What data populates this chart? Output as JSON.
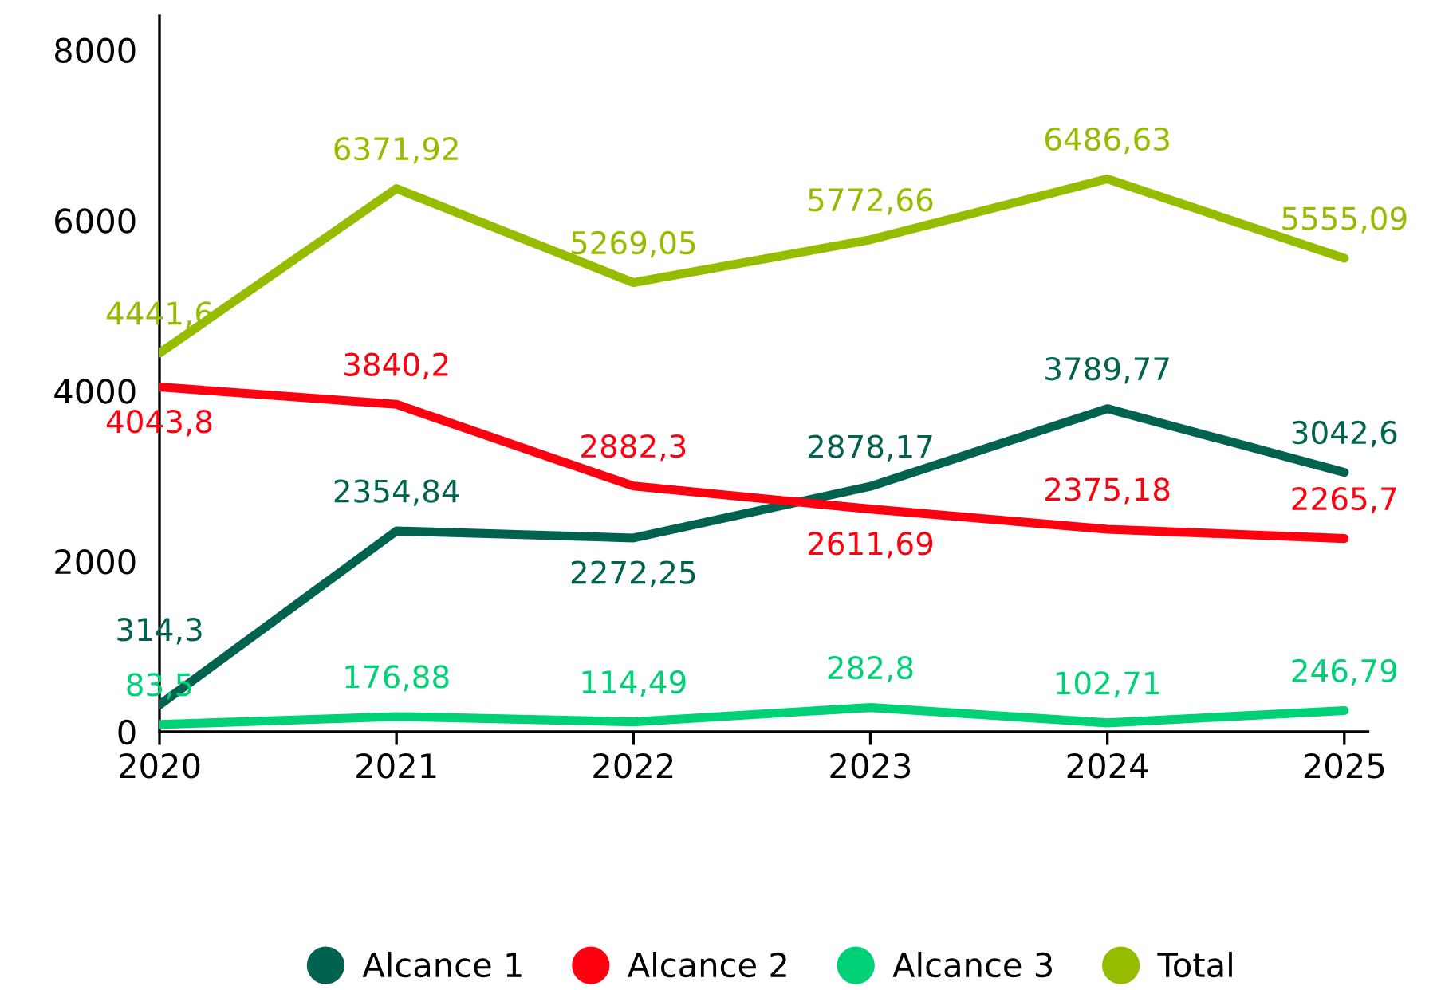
{
  "chart_data": {
    "type": "line",
    "x": [
      2020,
      2021,
      2022,
      2023,
      2024,
      2025
    ],
    "xlim": [
      2020,
      2025.1
    ],
    "xticks": [
      2020,
      2021,
      2022,
      2023,
      2024,
      2025
    ],
    "ylim": [
      0,
      8400
    ],
    "yticks": [
      0,
      2000,
      4000,
      6000,
      8000
    ],
    "grid": false,
    "legend": "bottom",
    "marker": "none",
    "line_style": "solid",
    "series": [
      {
        "name": "Alcance 1",
        "color": "#00624f",
        "values": [
          314.3,
          2354.84,
          2272.25,
          2878.17,
          3789.77,
          3042.6
        ],
        "value_labels": [
          "314,3",
          "2354,84",
          "2272,25",
          "2878,17",
          "3789,77",
          "3042,6"
        ]
      },
      {
        "name": "Alcance 2",
        "color": "#ff0010",
        "values": [
          4043.8,
          3840.2,
          2882.3,
          2611.69,
          2375.18,
          2265.7
        ],
        "value_labels": [
          "4043,8",
          "3840,2",
          "2882,3",
          "2611,69",
          "2375,18",
          "2265,7"
        ]
      },
      {
        "name": "Alcance 3",
        "color": "#00d176",
        "values": [
          83.5,
          176.88,
          114.49,
          282.8,
          102.71,
          246.79
        ],
        "value_labels": [
          "83,5",
          "176,88",
          "114,49",
          "282,8",
          "102,71",
          "246,79"
        ]
      },
      {
        "name": "Total",
        "color": "#96bc00",
        "values": [
          4441.6,
          6371.92,
          5269.05,
          5772.66,
          6486.63,
          5555.09
        ],
        "value_labels": [
          "4441,6",
          "6371,92",
          "5269,05",
          "5772,66",
          "6486,63",
          "5555,09"
        ]
      }
    ]
  }
}
